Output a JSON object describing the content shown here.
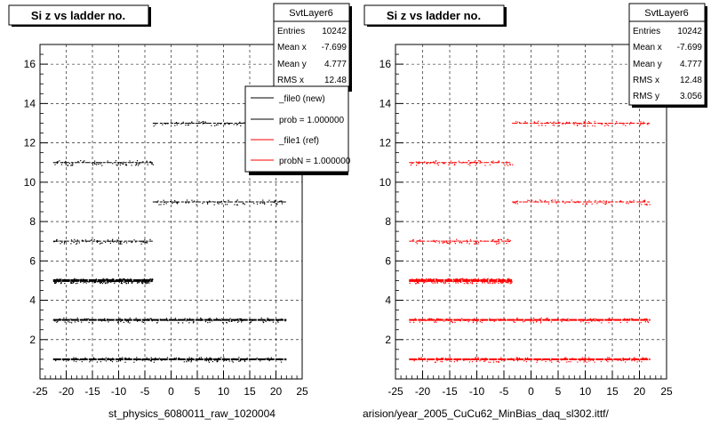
{
  "chart_data": [
    {
      "type": "scatter",
      "title": "Si z vs ladder no.",
      "xlabel": "st_physics_6080011_raw_1020004",
      "xlim": [
        -25,
        25
      ],
      "ylim": [
        0,
        17
      ],
      "xticks": [
        -25,
        -20,
        -15,
        -10,
        -5,
        0,
        5,
        10,
        15,
        20,
        25
      ],
      "yticks": [
        2,
        4,
        6,
        8,
        10,
        12,
        14,
        16
      ],
      "grid": true,
      "point_color": "#000000",
      "bands": [
        {
          "y": 1,
          "segments": [
            [
              -22.5,
              22.0
            ]
          ],
          "density": "high"
        },
        {
          "y": 3,
          "segments": [
            [
              -22.5,
              22.0
            ]
          ],
          "density": "high"
        },
        {
          "y": 5,
          "segments": [
            [
              -22.5,
              -3.5
            ]
          ],
          "density": "very-high"
        },
        {
          "y": 7,
          "segments": [
            [
              -22.5,
              -3.5
            ]
          ],
          "density": "medium"
        },
        {
          "y": 9,
          "segments": [
            [
              -3.5,
              22.0
            ]
          ],
          "density": "medium"
        },
        {
          "y": 11,
          "segments": [
            [
              -22.5,
              -3.5
            ]
          ],
          "density": "medium"
        },
        {
          "y": 13,
          "segments": [
            [
              -3.5,
              22.0
            ]
          ],
          "density": "medium"
        }
      ],
      "stats": {
        "name": "SvtLayer6",
        "rows": [
          {
            "label": "Entries",
            "value": "10242"
          },
          {
            "label": "Mean x",
            "value": "-7.699"
          },
          {
            "label": "Mean y",
            "value": "4.777"
          },
          {
            "label": "RMS x",
            "value": "12.48"
          }
        ]
      },
      "legend": {
        "placement": "top-right",
        "entries": [
          {
            "label": "_file0 (new)",
            "color": "#000000"
          },
          {
            "label": "prob = 1.000000",
            "color": "#000000"
          },
          {
            "label": "_file1 (ref)",
            "color": "#ff0000"
          },
          {
            "label": "probN = 1.000000",
            "color": "#ff0000"
          }
        ]
      }
    },
    {
      "type": "scatter",
      "title": "Si z vs ladder no.",
      "xlabel": "arision/year_2005_CuCu62_MinBias_daq_sl302.ittf/",
      "xlim": [
        -25,
        25
      ],
      "ylim": [
        0,
        17
      ],
      "xticks": [
        -25,
        -20,
        -15,
        -10,
        -5,
        0,
        5,
        10,
        15,
        20,
        25
      ],
      "yticks": [
        2,
        4,
        6,
        8,
        10,
        12,
        14,
        16
      ],
      "grid": true,
      "point_color": "#ff0000",
      "bands": [
        {
          "y": 1,
          "segments": [
            [
              -22.5,
              22.0
            ]
          ],
          "density": "high"
        },
        {
          "y": 3,
          "segments": [
            [
              -22.5,
              22.0
            ]
          ],
          "density": "high"
        },
        {
          "y": 5,
          "segments": [
            [
              -22.5,
              -3.5
            ]
          ],
          "density": "very-high"
        },
        {
          "y": 7,
          "segments": [
            [
              -22.5,
              -3.5
            ]
          ],
          "density": "medium"
        },
        {
          "y": 9,
          "segments": [
            [
              -3.5,
              22.0
            ]
          ],
          "density": "medium"
        },
        {
          "y": 11,
          "segments": [
            [
              -22.5,
              -3.5
            ]
          ],
          "density": "medium"
        },
        {
          "y": 13,
          "segments": [
            [
              -3.5,
              22.0
            ]
          ],
          "density": "medium"
        }
      ],
      "stats": {
        "name": "SvtLayer6",
        "rows": [
          {
            "label": "Entries",
            "value": "10242"
          },
          {
            "label": "Mean x",
            "value": "-7.699"
          },
          {
            "label": "Mean y",
            "value": "4.777"
          },
          {
            "label": "RMS x",
            "value": "12.48"
          },
          {
            "label": "RMS y",
            "value": "3.056"
          }
        ]
      }
    }
  ]
}
